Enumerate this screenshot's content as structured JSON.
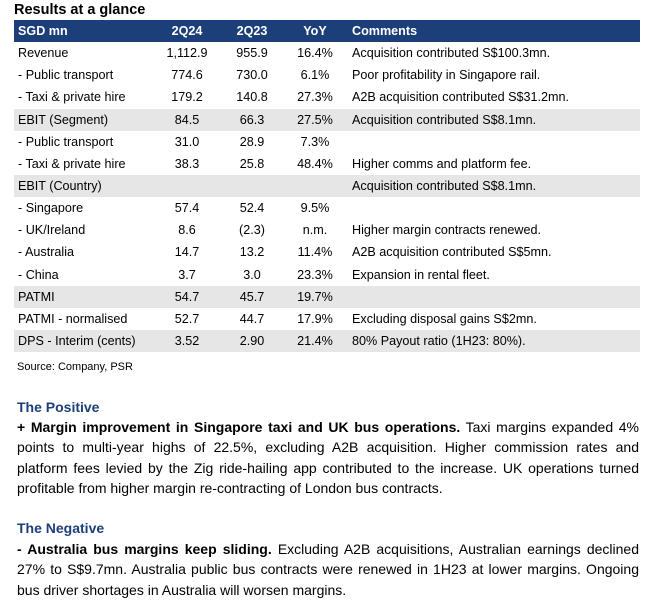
{
  "title": "Results at a glance",
  "table": {
    "headers": [
      "SGD mn",
      "2Q24",
      "2Q23",
      "YoY",
      "Comments"
    ],
    "rows": [
      {
        "label": "Revenue",
        "q24": "1,112.9",
        "q23": "955.9",
        "yoy": "16.4%",
        "comment": "Acquisition contributed S$100.3mn.",
        "shaded": false
      },
      {
        "label": " - Public transport",
        "q24": "774.6",
        "q23": "730.0",
        "yoy": "6.1%",
        "comment": "Poor profitability in Singapore rail.",
        "shaded": false
      },
      {
        "label": " - Taxi & private hire",
        "q24": "179.2",
        "q23": "140.8",
        "yoy": "27.3%",
        "comment": "A2B acquisition contributed S$31.2mn.",
        "shaded": false
      },
      {
        "label": "EBIT (Segment)",
        "q24": "84.5",
        "q23": "66.3",
        "yoy": "27.5%",
        "comment": "Acquisition contributed S$8.1mn.",
        "shaded": true
      },
      {
        "label": " - Public transport",
        "q24": "31.0",
        "q23": "28.9",
        "yoy": "7.3%",
        "comment": "",
        "shaded": false
      },
      {
        "label": " - Taxi & private hire",
        "q24": "38.3",
        "q23": "25.8",
        "yoy": "48.4%",
        "comment": "Higher comms and platform fee.",
        "shaded": false
      },
      {
        "label": "EBIT (Country)",
        "q24": "",
        "q23": "",
        "yoy": "",
        "comment": "Acquisition contributed S$8.1mn.",
        "shaded": true
      },
      {
        "label": " - Singapore",
        "q24": "57.4",
        "q23": "52.4",
        "yoy": "9.5%",
        "comment": "",
        "shaded": false
      },
      {
        "label": " - UK/Ireland",
        "q24": "8.6",
        "q23": "(2.3)",
        "yoy": "n.m.",
        "comment": "Higher margin contracts renewed.",
        "shaded": false
      },
      {
        "label": " - Australia",
        "q24": "14.7",
        "q23": "13.2",
        "yoy": "11.4%",
        "comment": "A2B acquisition contributed S$5mn.",
        "shaded": false
      },
      {
        "label": " - China",
        "q24": "3.7",
        "q23": "3.0",
        "yoy": "23.3%",
        "comment": "Expansion in rental fleet.",
        "shaded": false
      },
      {
        "label": "PATMI",
        "q24": "54.7",
        "q23": "45.7",
        "yoy": "19.7%",
        "comment": "",
        "shaded": true
      },
      {
        "label": "PATMI - normalised",
        "q24": "52.7",
        "q23": "44.7",
        "yoy": "17.9%",
        "comment": "Excluding disposal gains S$2mn.",
        "shaded": false
      },
      {
        "label": "DPS - Interim (cents)",
        "q24": "3.52",
        "q23": "2.90",
        "yoy": "21.4%",
        "comment": "80% Payout ratio (1H23: 80%).",
        "shaded": true
      }
    ]
  },
  "source": "Source: Company, PSR",
  "positive": {
    "heading": "The Positive",
    "lead": "+ Margin improvement in Singapore taxi and UK bus operations.",
    "body": " Taxi margins expanded 4% points to multi-year highs of 22.5%, excluding A2B acquisition. Higher commission rates and platform fees levied by the Zig ride-hailing app contributed to the increase. UK operations turned profitable from higher margin re-contracting of London bus contracts."
  },
  "negative": {
    "heading": "The Negative",
    "lead": "- Australia bus margins keep sliding.",
    "body": " Excluding A2B acquisitions, Australian earnings declined 27% to S$9.7mn. Australia public bus contracts were renewed in 1H23 at lower margins. Ongoing bus driver shortages in Australia will worsen margins."
  }
}
